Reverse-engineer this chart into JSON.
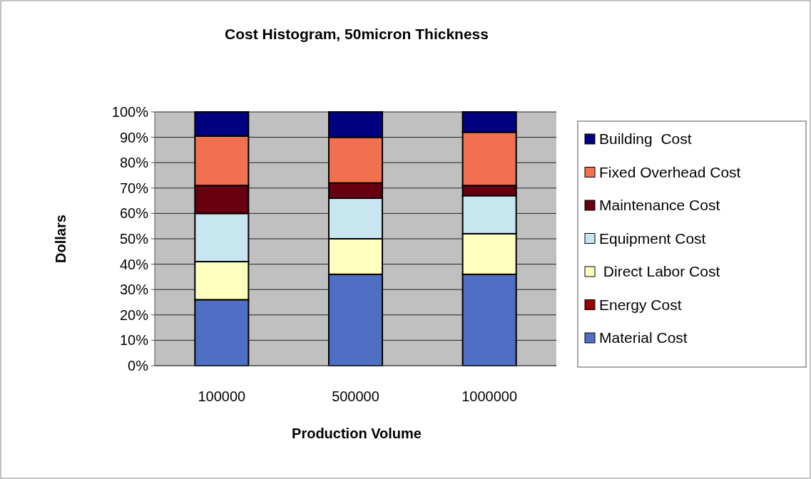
{
  "chart_data": {
    "type": "bar",
    "stacked": true,
    "title": "Cost Histogram, 50micron Thickness",
    "xlabel": "Production Volume",
    "ylabel": "Dollars",
    "categories": [
      "100000",
      "500000",
      "1000000"
    ],
    "series": [
      {
        "name": "Material Cost",
        "color": "#4f6fc4",
        "values": [
          26,
          36,
          36
        ]
      },
      {
        "name": "Energy Cost",
        "color": "#990000",
        "values": [
          0,
          0,
          0
        ]
      },
      {
        "name": " Direct Labor Cost",
        "color": "#ffffc0",
        "values": [
          15,
          14,
          16
        ]
      },
      {
        "name": "Equipment Cost",
        "color": "#c8e6f0",
        "values": [
          19,
          16,
          15
        ]
      },
      {
        "name": "Maintenance Cost",
        "color": "#660011",
        "values": [
          11,
          6,
          4
        ]
      },
      {
        "name": "Fixed Overhead Cost",
        "color": "#f07050",
        "values": [
          19.5,
          18,
          21
        ]
      },
      {
        "name": "Building  Cost",
        "color": "#000080",
        "values": [
          9.5,
          10,
          8
        ]
      }
    ],
    "ylim": [
      0,
      100
    ],
    "yticks": [
      {
        "value": 0,
        "label": "0%"
      },
      {
        "value": 10,
        "label": "10%"
      },
      {
        "value": 20,
        "label": "20%"
      },
      {
        "value": 30,
        "label": "30%"
      },
      {
        "value": 40,
        "label": "40%"
      },
      {
        "value": 50,
        "label": "50%"
      },
      {
        "value": 60,
        "label": "60%"
      },
      {
        "value": 70,
        "label": "70%"
      },
      {
        "value": 80,
        "label": "80%"
      },
      {
        "value": 90,
        "label": "90%"
      },
      {
        "value": 100,
        "label": "100%"
      }
    ],
    "grid": "y",
    "legend": "right"
  }
}
